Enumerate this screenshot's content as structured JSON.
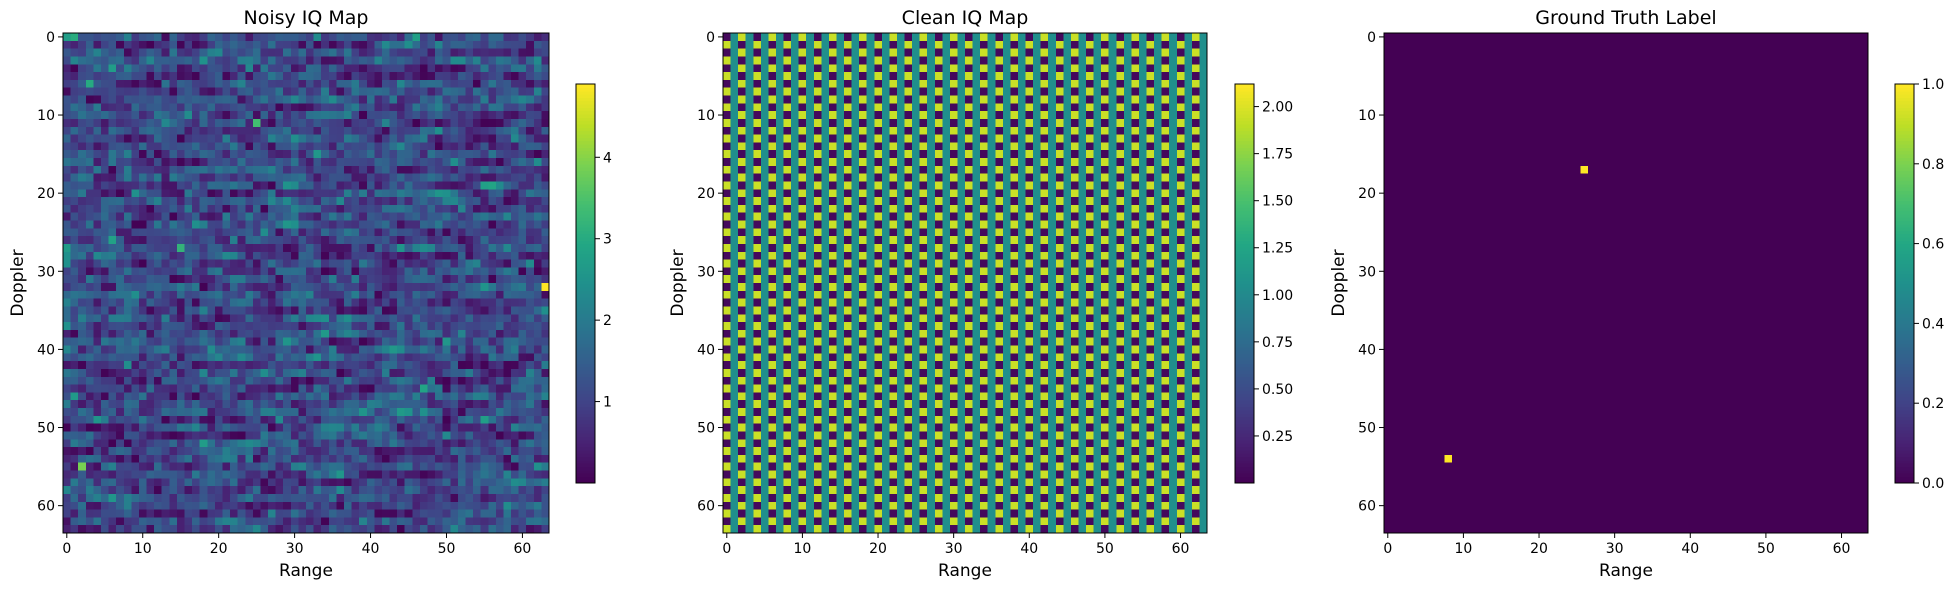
{
  "chart_data": [
    {
      "type": "heatmap",
      "title": "Noisy IQ Map",
      "xlabel": "Range",
      "ylabel": "Doppler",
      "grid_size": [
        64,
        64
      ],
      "xlim": [
        -0.5,
        63.5
      ],
      "ylim": [
        63.5,
        -0.5
      ],
      "xticks": [
        0,
        10,
        20,
        30,
        40,
        50,
        60
      ],
      "yticks": [
        0,
        10,
        20,
        30,
        40,
        50,
        60
      ],
      "colormap": "viridis",
      "colorbar": {
        "min": 0.0,
        "max": 4.9,
        "ticks": [
          1,
          2,
          3,
          4
        ],
        "tick_labels": [
          "1",
          "2",
          "3",
          "4"
        ]
      },
      "pattern": "noise",
      "pattern_params": {
        "mean": 1.1,
        "spread": 0.9,
        "row_correlation": 0.6,
        "seed": 7
      },
      "peaks": [
        {
          "range": 63,
          "doppler": 32,
          "value": 4.9
        },
        {
          "range": 2,
          "doppler": 55,
          "value": 3.9
        },
        {
          "range": 25,
          "doppler": 11,
          "value": 3.4
        },
        {
          "range": 15,
          "doppler": 27,
          "value": 3.2
        }
      ]
    },
    {
      "type": "heatmap",
      "title": "Clean IQ Map",
      "xlabel": "Range",
      "ylabel": "Doppler",
      "grid_size": [
        64,
        64
      ],
      "xlim": [
        -0.5,
        63.5
      ],
      "ylim": [
        63.5,
        -0.5
      ],
      "xticks": [
        0,
        10,
        20,
        30,
        40,
        50,
        60
      ],
      "yticks": [
        0,
        10,
        20,
        30,
        40,
        50,
        60
      ],
      "colormap": "viridis",
      "colorbar": {
        "min": 0.0,
        "max": 2.12,
        "ticks": [
          0.25,
          0.5,
          0.75,
          1.0,
          1.25,
          1.5,
          1.75,
          2.0
        ],
        "tick_labels": [
          "0.25",
          "0.50",
          "0.75",
          "1.00",
          "1.25",
          "1.50",
          "1.75",
          "2.00"
        ]
      },
      "pattern": "interference",
      "pattern_params": {
        "levels": [
          0.05,
          1.05,
          1.95,
          1.05
        ]
      },
      "peaks": []
    },
    {
      "type": "heatmap",
      "title": "Ground Truth Label",
      "xlabel": "Range",
      "ylabel": "Doppler",
      "grid_size": [
        64,
        64
      ],
      "xlim": [
        -0.5,
        63.5
      ],
      "ylim": [
        63.5,
        -0.5
      ],
      "xticks": [
        0,
        10,
        20,
        30,
        40,
        50,
        60
      ],
      "yticks": [
        0,
        10,
        20,
        30,
        40,
        50,
        60
      ],
      "colormap": "viridis",
      "colorbar": {
        "min": 0.0,
        "max": 1.0,
        "ticks": [
          0.0,
          0.2,
          0.4,
          0.6,
          0.8,
          1.0
        ],
        "tick_labels": [
          "0.0",
          "0.2",
          "0.4",
          "0.6",
          "0.8",
          "1.0"
        ]
      },
      "pattern": "zeros",
      "pattern_params": {},
      "peaks": [
        {
          "range": 26,
          "doppler": 17,
          "value": 1.0
        },
        {
          "range": 8,
          "doppler": 54,
          "value": 1.0
        }
      ]
    }
  ]
}
